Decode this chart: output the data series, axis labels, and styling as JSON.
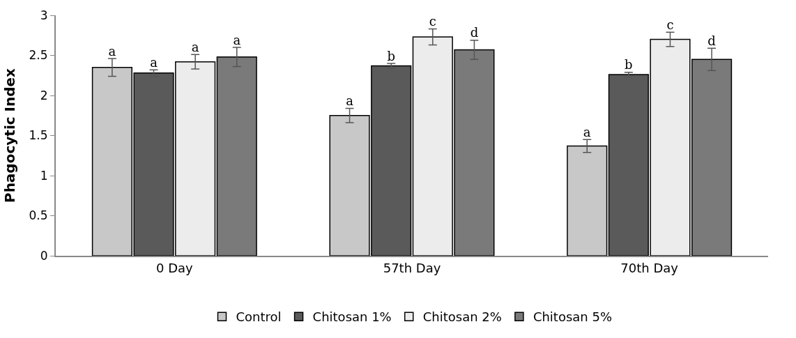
{
  "chart_data": {
    "type": "bar",
    "ylabel": "Phagocytic Index",
    "categories": [
      "0 Day",
      "57th Day",
      "70th Day"
    ],
    "series": [
      {
        "name": "Control",
        "color": "#c8c8c8",
        "values": [
          2.35,
          1.75,
          1.37
        ],
        "errors": [
          0.11,
          0.09,
          0.08
        ],
        "value_labels": [
          "a",
          "a",
          "a"
        ]
      },
      {
        "name": "Chitosan 1%",
        "color": "#5a5a5a",
        "values": [
          2.28,
          2.37,
          2.26
        ],
        "errors": [
          0.04,
          0.03,
          0.03
        ],
        "value_labels": [
          "a",
          "b",
          "b"
        ]
      },
      {
        "name": "Chitosan 2%",
        "color": "#ececec",
        "values": [
          2.42,
          2.73,
          2.7
        ],
        "errors": [
          0.09,
          0.1,
          0.09
        ],
        "value_labels": [
          "a",
          "c",
          "c"
        ]
      },
      {
        "name": "Chitosan 5%",
        "color": "#7a7a7a",
        "values": [
          2.48,
          2.57,
          2.45
        ],
        "errors": [
          0.12,
          0.12,
          0.14
        ],
        "value_labels": [
          "a",
          "d",
          "d"
        ]
      }
    ],
    "ylim": [
      0,
      3
    ],
    "yticks": [
      0,
      0.5,
      1,
      1.5,
      2,
      2.5,
      3
    ],
    "legend": "bottom"
  }
}
